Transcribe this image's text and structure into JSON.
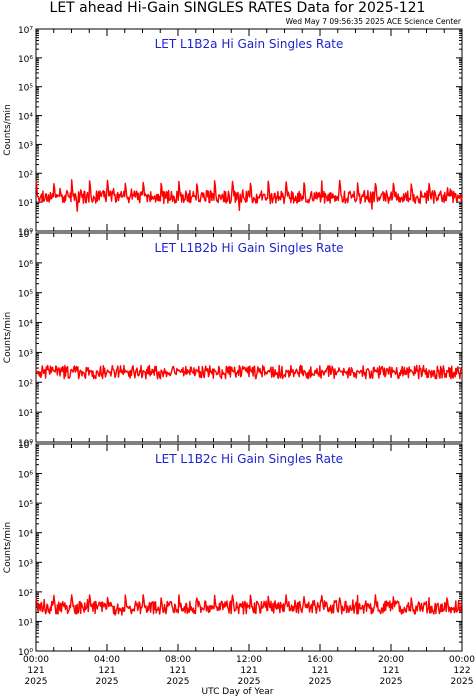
{
  "title": "LET ahead Hi-Gain SINGLES RATES Data for 2025-121",
  "timestamp": "Wed May  7 09:56:35 2025 ACE Science Center",
  "xlabel": "UTC Day of Year",
  "colors": {
    "series": "#ff0000",
    "panel_title": "#1f24c8"
  },
  "chart_data": [
    {
      "type": "line",
      "title": "LET L1B2a Hi Gain Singles Rate",
      "ylabel": "Counts/min",
      "yscale": "log",
      "ylim": [
        1,
        10000000
      ],
      "y_ticks": [
        "10⁰",
        "10¹",
        "10²",
        "10³",
        "10⁴",
        "10⁵",
        "10⁶",
        "10⁷"
      ],
      "xlim": [
        "2025-121 00:00",
        "2025-122 00:00"
      ],
      "x_ticks": [
        [
          "00:00",
          "121",
          "2025"
        ],
        [
          "04:00",
          "121",
          "2025"
        ],
        [
          "08:00",
          "121",
          "2025"
        ],
        [
          "12:00",
          "121",
          "2025"
        ],
        [
          "16:00",
          "121",
          "2025"
        ],
        [
          "20:00",
          "121",
          "2025"
        ],
        [
          "00:00",
          "122",
          "2025"
        ]
      ],
      "series": [
        {
          "baseline": 15,
          "spike_peak": 60,
          "noise_range": [
            4,
            30
          ]
        }
      ]
    },
    {
      "type": "line",
      "title": "LET L1B2b Hi Gain Singles Rate",
      "ylabel": "Counts/min",
      "yscale": "log",
      "ylim": [
        1,
        10000000
      ],
      "y_ticks": [
        "10⁰",
        "10¹",
        "10²",
        "10³",
        "10⁴",
        "10⁵",
        "10⁶",
        "10⁷"
      ],
      "xlim": [
        "2025-121 00:00",
        "2025-122 00:00"
      ],
      "x_ticks": [
        [
          "00:00",
          "121",
          "2025"
        ],
        [
          "04:00",
          "121",
          "2025"
        ],
        [
          "08:00",
          "121",
          "2025"
        ],
        [
          "12:00",
          "121",
          "2025"
        ],
        [
          "16:00",
          "121",
          "2025"
        ],
        [
          "20:00",
          "121",
          "2025"
        ],
        [
          "00:00",
          "122",
          "2025"
        ]
      ],
      "series": [
        {
          "baseline": 220,
          "spike_peak": 260,
          "noise_range": [
            200,
            240
          ]
        }
      ]
    },
    {
      "type": "line",
      "title": "LET L1B2c Hi Gain Singles Rate",
      "ylabel": "Counts/min",
      "yscale": "log",
      "ylim": [
        1,
        10000000
      ],
      "y_ticks": [
        "10⁰",
        "10¹",
        "10²",
        "10³",
        "10⁴",
        "10⁵",
        "10⁶",
        "10⁷"
      ],
      "xlim": [
        "2025-121 00:00",
        "2025-122 00:00"
      ],
      "x_ticks": [
        [
          "00:00",
          "121",
          "2025"
        ],
        [
          "04:00",
          "121",
          "2025"
        ],
        [
          "08:00",
          "121",
          "2025"
        ],
        [
          "12:00",
          "121",
          "2025"
        ],
        [
          "16:00",
          "121",
          "2025"
        ],
        [
          "20:00",
          "121",
          "2025"
        ],
        [
          "00:00",
          "122",
          "2025"
        ]
      ],
      "series": [
        {
          "baseline": 30,
          "spike_peak": 80,
          "noise_range": [
            12,
            55
          ]
        }
      ]
    }
  ]
}
